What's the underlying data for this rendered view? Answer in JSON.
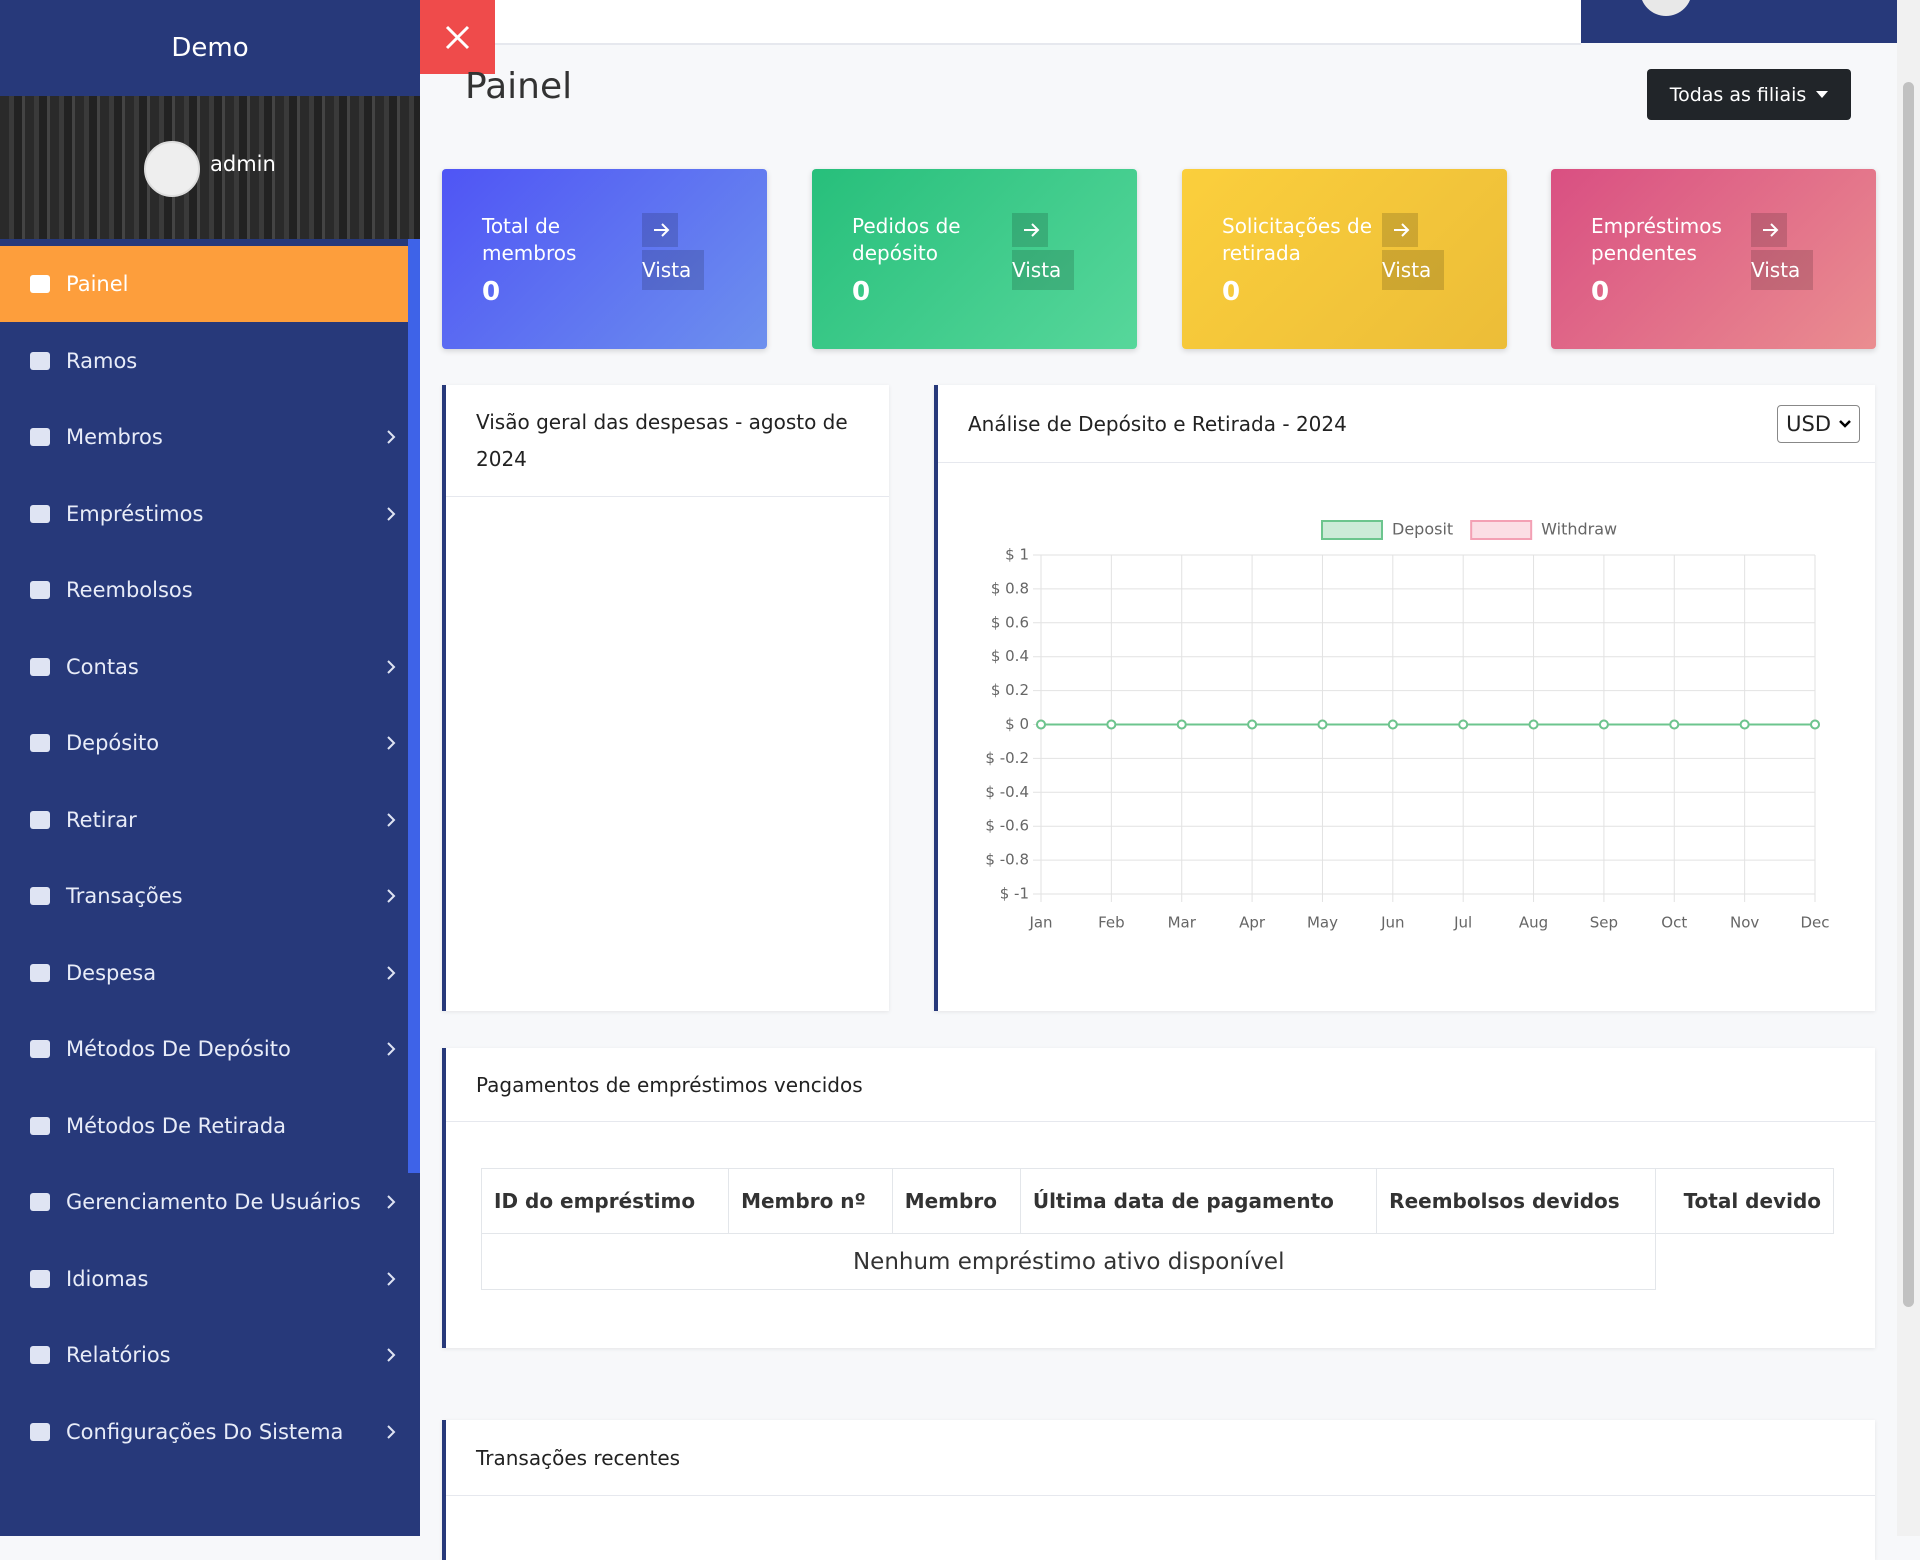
{
  "sidebar": {
    "brand": "Demo",
    "user": "admin",
    "menu": [
      {
        "label": "Painel",
        "active": true
      },
      {
        "label": "Ramos"
      },
      {
        "label": "Membros",
        "has_submenu": true
      },
      {
        "label": "Empréstimos",
        "has_submenu": true
      },
      {
        "label": "Reembolsos"
      },
      {
        "label": "Contas",
        "has_submenu": true
      },
      {
        "label": "Depósito",
        "has_submenu": true
      },
      {
        "label": "Retirar",
        "has_submenu": true
      },
      {
        "label": "Transações",
        "has_submenu": true
      },
      {
        "label": "Despesa",
        "has_submenu": true
      },
      {
        "label": "Métodos De Depósito",
        "has_submenu": true
      },
      {
        "label": "Métodos De Retirada"
      },
      {
        "label": "Gerenciamento De Usuários",
        "has_submenu": true
      },
      {
        "label": "Idiomas",
        "has_submenu": true
      },
      {
        "label": "Relatórios",
        "has_submenu": true
      },
      {
        "label": "Configurações Do Sistema",
        "has_submenu": true
      }
    ]
  },
  "header": {
    "title": "Painel",
    "branch_button": "Todas as filiais"
  },
  "cards": [
    {
      "label": "Total de membros",
      "value": 0,
      "link": "Vista"
    },
    {
      "label": "Pedidos de depósito",
      "value": 0,
      "link": "Vista"
    },
    {
      "label": "Solicitações de retirada",
      "value": 0,
      "link": "Vista"
    },
    {
      "label": "Empréstimos pendentes",
      "value": 0,
      "link": "Vista"
    }
  ],
  "expense_panel": {
    "title": "Visão geral das despesas - agosto de 2024"
  },
  "deposit_panel": {
    "title": "Análise de Depósito e Retirada - 2024",
    "currency": "USD"
  },
  "chart_data": {
    "type": "line",
    "categories": [
      "Jan",
      "Feb",
      "Mar",
      "Apr",
      "May",
      "Jun",
      "Jul",
      "Aug",
      "Sep",
      "Oct",
      "Nov",
      "Dec"
    ],
    "series": [
      {
        "name": "Deposit",
        "color": "#6cc58e",
        "values": [
          0,
          0,
          0,
          0,
          0,
          0,
          0,
          0,
          0,
          0,
          0,
          0
        ]
      },
      {
        "name": "Withdraw",
        "color": "#f3a0b4",
        "values": [
          0,
          0,
          0,
          0,
          0,
          0,
          0,
          0,
          0,
          0,
          0,
          0
        ]
      }
    ],
    "ylim": [
      -1,
      1
    ],
    "yticks": [
      {
        "value": 1,
        "label": "$ 1"
      },
      {
        "value": 0.8,
        "label": "$ 0.8"
      },
      {
        "value": 0.6,
        "label": "$ 0.6"
      },
      {
        "value": 0.4,
        "label": "$ 0.4"
      },
      {
        "value": 0.2,
        "label": "$ 0.2"
      },
      {
        "value": 0,
        "label": "$ 0"
      },
      {
        "value": -0.2,
        "label": "$ -0.2"
      },
      {
        "value": -0.4,
        "label": "$ -0.4"
      },
      {
        "value": -0.6,
        "label": "$ -0.6"
      },
      {
        "value": -0.8,
        "label": "$ -0.8"
      },
      {
        "value": -1,
        "label": "$ -1"
      }
    ],
    "grid": true,
    "legend": "top"
  },
  "loans_table": {
    "title": "Pagamentos de empréstimos vencidos",
    "columns": [
      "ID do empréstimo",
      "Membro nº",
      "Membro",
      "Última data de pagamento",
      "Reembolsos devidos",
      "Total devido"
    ],
    "empty": "Nenhum empréstimo ativo disponível"
  },
  "recent": {
    "title": "Transações recentes"
  }
}
